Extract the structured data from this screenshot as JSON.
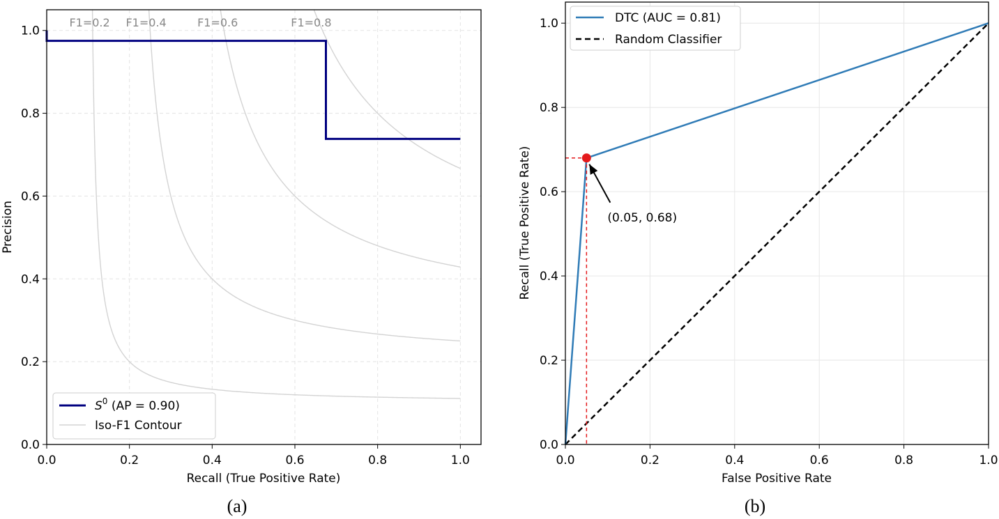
{
  "chart_data": [
    {
      "type": "line",
      "xlabel": "Recall (True Positive Rate)",
      "ylabel": "Precision",
      "xlim": [
        0,
        1.05
      ],
      "ylim": [
        0,
        1.05
      ],
      "xticks": [
        "0.0",
        "0.2",
        "0.4",
        "0.6",
        "0.8",
        "1.0"
      ],
      "yticks": [
        "0.0",
        "0.2",
        "0.4",
        "0.6",
        "0.8",
        "1.0"
      ],
      "grid": "dashed",
      "legend_position": "lower-left",
      "caption": "(a)",
      "series": [
        {
          "name": "S⁰ (AP = 0.90)",
          "legend_main": "S",
          "legend_sup": "0",
          "legend_rest": " (AP = 0.90)",
          "style": "step",
          "color": "#000080",
          "x": [
            0.0,
            0.0,
            0.675,
            0.675,
            1.0
          ],
          "y": [
            1.0,
            0.975,
            0.975,
            0.738,
            0.738
          ]
        }
      ],
      "iso_f1": {
        "legend": "Iso-F1 Contour",
        "color": "#d3d3d3",
        "values": [
          0.2,
          0.4,
          0.6,
          0.8
        ],
        "labels": [
          "F1=0.2",
          "F1=0.4",
          "F1=0.6",
          "F1=0.8"
        ]
      }
    },
    {
      "type": "line",
      "xlabel": "False Positive Rate",
      "ylabel": "Recall (True Positive Rate)",
      "xlim": [
        0,
        1
      ],
      "ylim": [
        0,
        1.05
      ],
      "xticks": [
        "0.0",
        "0.2",
        "0.4",
        "0.6",
        "0.8",
        "1.0"
      ],
      "yticks": [
        "0.0",
        "0.2",
        "0.4",
        "0.6",
        "0.8",
        "1.0"
      ],
      "grid": "solid",
      "legend_position": "top-left",
      "caption": "(b)",
      "series": [
        {
          "name": "DTC (AUC = 0.81)",
          "color": "#2f7bb6",
          "style": "solid",
          "x": [
            0.0,
            0.05,
            1.0
          ],
          "y": [
            0.0,
            0.68,
            1.0
          ]
        },
        {
          "name": "Random Classifier",
          "color": "#000000",
          "style": "dashed",
          "x": [
            0.0,
            1.0
          ],
          "y": [
            0.0,
            1.0
          ]
        }
      ],
      "highlight_point": {
        "x": 0.05,
        "y": 0.68,
        "label": "(0.05, 0.68)",
        "color": "#e41a1c"
      }
    }
  ]
}
